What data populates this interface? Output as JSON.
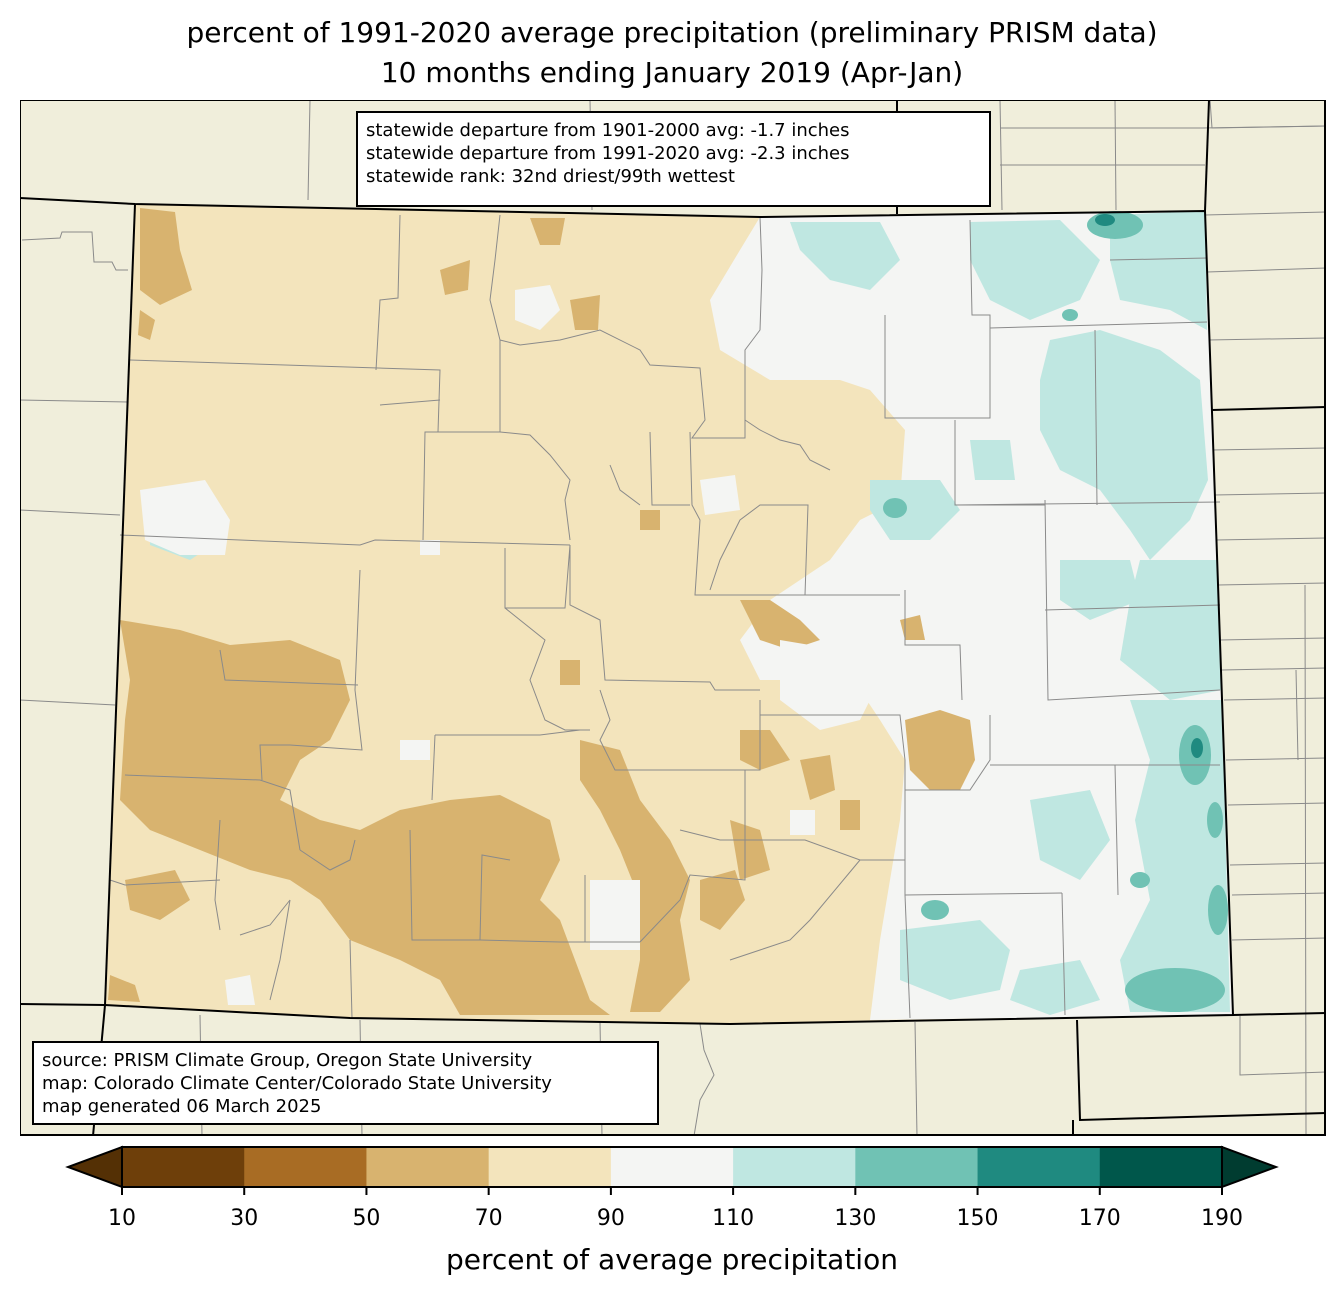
{
  "title_line1": "percent of 1991-2020 average precipitation (preliminary PRISM data)",
  "title_line2": "10 months ending January 2019 (Apr-Jan)",
  "stats_box": {
    "line1": "statewide departure from 1901-2000 avg: -1.7 inches",
    "line2": "statewide departure from 1991-2020 avg: -2.3 inches",
    "line3": "statewide rank: 32nd driest/99th wettest"
  },
  "source_box": {
    "line1": "source: PRISM Climate Group, Oregon State University",
    "line2": "map: Colorado Climate Center/Colorado State University",
    "line3": "map generated 06 March 2025"
  },
  "colorbar": {
    "label": "percent of average precipitation",
    "ticks": [
      "10",
      "30",
      "50",
      "70",
      "90",
      "110",
      "130",
      "150",
      "170",
      "190"
    ],
    "under_color": "#543005",
    "over_color": "#003c30",
    "colors": [
      "#8c510a",
      "#bf812d",
      "#dfc27d",
      "#f6e8c3",
      "#f5f5f5",
      "#c7eae5",
      "#80cdc1",
      "#35978f",
      "#01665e"
    ],
    "color_list": [
      "#6e3f0a",
      "#a86c24",
      "#d8b36f",
      "#f3e4bc",
      "#f4f5f3",
      "#bfe7e1",
      "#70c2b4",
      "#1f8a80",
      "#00574b"
    ]
  },
  "map_colors": {
    "background": "#f0eedb",
    "dry_70_90": "#f3e4bc",
    "dry_50_70": "#d8b36f",
    "near_90_110": "#f4f5f3",
    "wet_110_130": "#bfe7e1",
    "wet_130_150": "#70c2b4",
    "wet_150_170": "#1f8a80",
    "wet_170_190": "#00574b"
  }
}
